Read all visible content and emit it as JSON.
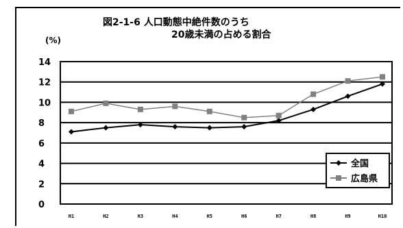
{
  "chart_data": {
    "type": "line",
    "title": "図2-1-6 人口動態中絶件数のうち",
    "subtitle": "20歳未満の占める割合",
    "ylabel": "(%)",
    "ylim": [
      0,
      14
    ],
    "yticks": [
      "0",
      "2",
      "4",
      "6",
      "8",
      "10",
      "12",
      "14"
    ],
    "x": [
      "H1",
      "H2",
      "H3",
      "H4",
      "H5",
      "H6",
      "H7",
      "H8",
      "H9",
      "H10"
    ],
    "series": [
      {
        "name": "全国",
        "color": "#000000",
        "values": [
          7.1,
          7.5,
          7.8,
          7.6,
          7.5,
          7.6,
          8.2,
          9.3,
          10.6,
          11.8
        ]
      },
      {
        "name": "広島県",
        "color": "#808080",
        "values": [
          9.1,
          9.9,
          9.3,
          9.6,
          9.1,
          8.5,
          8.7,
          10.8,
          12.1,
          12.5
        ]
      }
    ],
    "legend": "bottom-right",
    "grid": true
  }
}
